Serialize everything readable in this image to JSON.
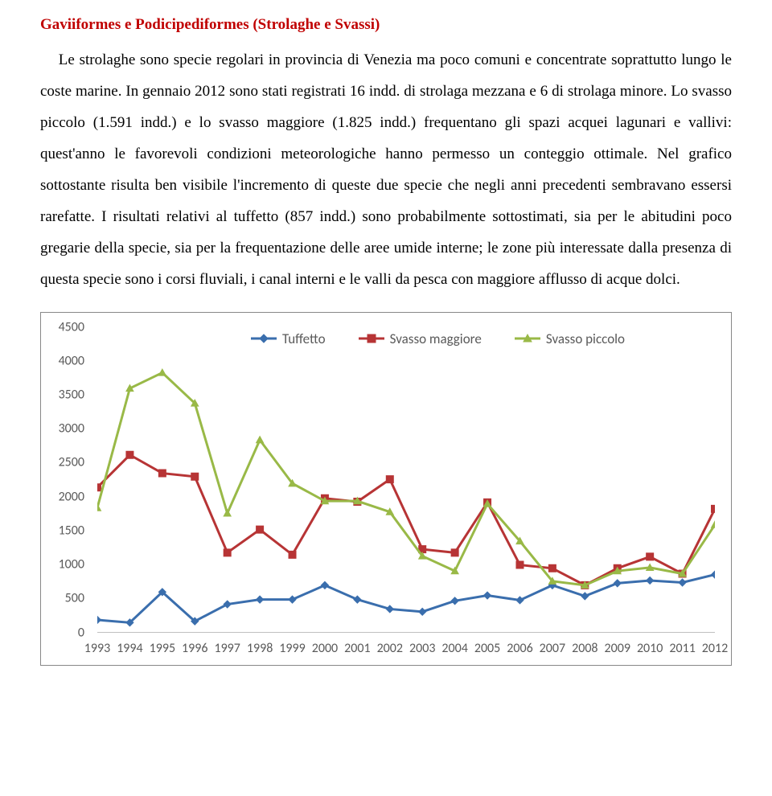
{
  "section": {
    "title": "Gaviiformes e Podicipediformes (Strolaghe e Svassi)",
    "paragraph": "Le strolaghe sono specie regolari in provincia di Venezia ma poco comuni e concentrate soprattutto lungo le coste marine. In gennaio 2012 sono stati registrati 16 indd. di strolaga mezzana e 6 di strolaga minore. Lo svasso piccolo (1.591 indd.) e lo svasso maggiore (1.825 indd.) frequentano gli spazi acquei lagunari e vallivi: quest'anno le favorevoli condizioni meteorologiche hanno permesso un conteggio ottimale. Nel grafico sottostante risulta ben visibile l'incremento di queste due specie che negli anni precedenti sembravano essersi rarefatte. I risultati relativi al tuffetto (857 indd.) sono probabilmente sottostimati, sia per le abitudini poco gregarie della specie, sia per la frequentazione delle aree umide interne; le zone più interessate dalla presenza di questa specie sono i corsi fluviali, i canal interni e le valli da pesca con maggiore afflusso di acque dolci."
  },
  "chart": {
    "type": "line",
    "background_color": "#ffffff",
    "border_color": "#888888",
    "axis_line_color": "#828282",
    "tick_mark_color": "#828282",
    "tick_font_family": "Calibri",
    "tick_font_size": 16,
    "tick_font_color": "#5a5a5a",
    "line_width": 3,
    "marker_size": 9,
    "ylim": [
      0,
      4500
    ],
    "ytick_step": 500,
    "x_categories": [
      "1993",
      "1994",
      "1995",
      "1996",
      "1997",
      "1998",
      "1999",
      "2000",
      "2001",
      "2002",
      "2003",
      "2004",
      "2005",
      "2006",
      "2007",
      "2008",
      "2009",
      "2010",
      "2011",
      "2012"
    ],
    "series": [
      {
        "name": "Tuffetto",
        "color": "#3a6ead",
        "marker": "diamond",
        "data": [
          190,
          150,
          600,
          170,
          420,
          490,
          490,
          700,
          490,
          350,
          310,
          470,
          550,
          480,
          700,
          540,
          730,
          770,
          740,
          857
        ]
      },
      {
        "name": "Svasso maggiore",
        "color": "#b73435",
        "marker": "square",
        "data": [
          2140,
          2620,
          2350,
          2300,
          1180,
          1520,
          1150,
          1980,
          1930,
          2260,
          1230,
          1180,
          1920,
          1000,
          950,
          700,
          950,
          1120,
          870,
          1825
        ]
      },
      {
        "name": "Svasso piccolo",
        "color": "#99b947",
        "marker": "triangle",
        "data": [
          1840,
          3600,
          3830,
          3380,
          1760,
          2840,
          2200,
          1940,
          1940,
          1780,
          1130,
          910,
          1900,
          1350,
          760,
          700,
          910,
          960,
          870,
          1591
        ]
      }
    ],
    "legend": {
      "position": "top-center",
      "font_size": 17,
      "font_color": "#5a5a5a"
    }
  }
}
